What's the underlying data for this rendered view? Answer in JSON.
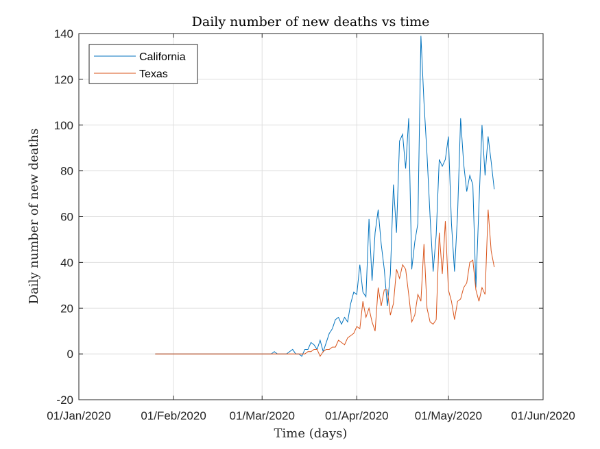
{
  "chart_data": {
    "type": "line",
    "title": "Daily number of new deaths vs time",
    "xlabel": "Time (days)",
    "ylabel": "Daily number of new deaths",
    "xlim": [
      "2020-01-01",
      "2020-06-01"
    ],
    "ylim": [
      -20,
      140
    ],
    "x_ticks": [
      "2020-01-01",
      "2020-02-01",
      "2020-03-01",
      "2020-04-01",
      "2020-05-01",
      "2020-06-01"
    ],
    "x_tick_labels": [
      "01/Jan/2020",
      "01/Feb/2020",
      "01/Mar/2020",
      "01/Apr/2020",
      "01/May/2020",
      "01/Jun/2020"
    ],
    "y_ticks": [
      -20,
      0,
      20,
      40,
      60,
      80,
      100,
      120,
      140
    ],
    "y_tick_labels": [
      "-20",
      "0",
      "20",
      "40",
      "60",
      "80",
      "100",
      "120",
      "140"
    ],
    "grid": true,
    "legend_position": "top-left",
    "series": [
      {
        "name": "California",
        "color": "#0072BD",
        "points": [
          [
            "2020-01-26",
            0
          ],
          [
            "2020-02-15",
            0
          ],
          [
            "2020-03-04",
            0
          ],
          [
            "2020-03-05",
            1
          ],
          [
            "2020-03-06",
            0
          ],
          [
            "2020-03-07",
            0
          ],
          [
            "2020-03-08",
            0
          ],
          [
            "2020-03-09",
            0
          ],
          [
            "2020-03-10",
            1
          ],
          [
            "2020-03-11",
            2
          ],
          [
            "2020-03-12",
            0
          ],
          [
            "2020-03-13",
            0
          ],
          [
            "2020-03-14",
            -1
          ],
          [
            "2020-03-15",
            2
          ],
          [
            "2020-03-16",
            2
          ],
          [
            "2020-03-17",
            5
          ],
          [
            "2020-03-18",
            4
          ],
          [
            "2020-03-19",
            2
          ],
          [
            "2020-03-20",
            6
          ],
          [
            "2020-03-21",
            1
          ],
          [
            "2020-03-22",
            5
          ],
          [
            "2020-03-23",
            9
          ],
          [
            "2020-03-24",
            11
          ],
          [
            "2020-03-25",
            15
          ],
          [
            "2020-03-26",
            16
          ],
          [
            "2020-03-27",
            13
          ],
          [
            "2020-03-28",
            16
          ],
          [
            "2020-03-29",
            14
          ],
          [
            "2020-03-30",
            22
          ],
          [
            "2020-03-31",
            27
          ],
          [
            "2020-04-01",
            26
          ],
          [
            "2020-04-02",
            39
          ],
          [
            "2020-04-03",
            27
          ],
          [
            "2020-04-04",
            25
          ],
          [
            "2020-04-05",
            59
          ],
          [
            "2020-04-06",
            32
          ],
          [
            "2020-04-07",
            53
          ],
          [
            "2020-04-08",
            63
          ],
          [
            "2020-04-09",
            48
          ],
          [
            "2020-04-10",
            37
          ],
          [
            "2020-04-11",
            21
          ],
          [
            "2020-04-12",
            35
          ],
          [
            "2020-04-13",
            74
          ],
          [
            "2020-04-14",
            53
          ],
          [
            "2020-04-15",
            93
          ],
          [
            "2020-04-16",
            96
          ],
          [
            "2020-04-17",
            81
          ],
          [
            "2020-04-18",
            103
          ],
          [
            "2020-04-19",
            37
          ],
          [
            "2020-04-20",
            49
          ],
          [
            "2020-04-21",
            57
          ],
          [
            "2020-04-22",
            139
          ],
          [
            "2020-04-23",
            110
          ],
          [
            "2020-04-24",
            87
          ],
          [
            "2020-04-25",
            60
          ],
          [
            "2020-04-26",
            36
          ],
          [
            "2020-04-27",
            52
          ],
          [
            "2020-04-28",
            85
          ],
          [
            "2020-04-29",
            82
          ],
          [
            "2020-04-30",
            85
          ],
          [
            "2020-05-01",
            95
          ],
          [
            "2020-05-02",
            57
          ],
          [
            "2020-05-03",
            36
          ],
          [
            "2020-05-04",
            61
          ],
          [
            "2020-05-05",
            103
          ],
          [
            "2020-05-06",
            83
          ],
          [
            "2020-05-07",
            71
          ],
          [
            "2020-05-08",
            78
          ],
          [
            "2020-05-09",
            74
          ],
          [
            "2020-05-10",
            29
          ],
          [
            "2020-05-11",
            65
          ],
          [
            "2020-05-12",
            100
          ],
          [
            "2020-05-13",
            78
          ],
          [
            "2020-05-14",
            95
          ],
          [
            "2020-05-15",
            84
          ],
          [
            "2020-05-16",
            72
          ]
        ]
      },
      {
        "name": "Texas",
        "color": "#D95319",
        "points": [
          [
            "2020-01-26",
            0
          ],
          [
            "2020-02-15",
            0
          ],
          [
            "2020-03-10",
            0
          ],
          [
            "2020-03-15",
            0
          ],
          [
            "2020-03-16",
            1
          ],
          [
            "2020-03-17",
            1
          ],
          [
            "2020-03-18",
            2
          ],
          [
            "2020-03-19",
            2
          ],
          [
            "2020-03-20",
            -1
          ],
          [
            "2020-03-21",
            1
          ],
          [
            "2020-03-22",
            2
          ],
          [
            "2020-03-23",
            2
          ],
          [
            "2020-03-24",
            3
          ],
          [
            "2020-03-25",
            3
          ],
          [
            "2020-03-26",
            6
          ],
          [
            "2020-03-27",
            5
          ],
          [
            "2020-03-28",
            4
          ],
          [
            "2020-03-29",
            7
          ],
          [
            "2020-03-30",
            8
          ],
          [
            "2020-03-31",
            9
          ],
          [
            "2020-04-01",
            12
          ],
          [
            "2020-04-02",
            11
          ],
          [
            "2020-04-03",
            23
          ],
          [
            "2020-04-04",
            16
          ],
          [
            "2020-04-05",
            20
          ],
          [
            "2020-04-06",
            14
          ],
          [
            "2020-04-07",
            10
          ],
          [
            "2020-04-08",
            29
          ],
          [
            "2020-04-09",
            21
          ],
          [
            "2020-04-10",
            28
          ],
          [
            "2020-04-11",
            28
          ],
          [
            "2020-04-12",
            17
          ],
          [
            "2020-04-13",
            22
          ],
          [
            "2020-04-14",
            37
          ],
          [
            "2020-04-15",
            33
          ],
          [
            "2020-04-16",
            39
          ],
          [
            "2020-04-17",
            37
          ],
          [
            "2020-04-18",
            26
          ],
          [
            "2020-04-19",
            14
          ],
          [
            "2020-04-20",
            17
          ],
          [
            "2020-04-21",
            26
          ],
          [
            "2020-04-22",
            23
          ],
          [
            "2020-04-23",
            48
          ],
          [
            "2020-04-24",
            20
          ],
          [
            "2020-04-25",
            14
          ],
          [
            "2020-04-26",
            13
          ],
          [
            "2020-04-27",
            15
          ],
          [
            "2020-04-28",
            53
          ],
          [
            "2020-04-29",
            35
          ],
          [
            "2020-04-30",
            58
          ],
          [
            "2020-05-01",
            28
          ],
          [
            "2020-05-02",
            23
          ],
          [
            "2020-05-03",
            15
          ],
          [
            "2020-05-04",
            23
          ],
          [
            "2020-05-05",
            24
          ],
          [
            "2020-05-06",
            29
          ],
          [
            "2020-05-07",
            31
          ],
          [
            "2020-05-08",
            40
          ],
          [
            "2020-05-09",
            41
          ],
          [
            "2020-05-10",
            28
          ],
          [
            "2020-05-11",
            23
          ],
          [
            "2020-05-12",
            29
          ],
          [
            "2020-05-13",
            26
          ],
          [
            "2020-05-14",
            63
          ],
          [
            "2020-05-15",
            45
          ],
          [
            "2020-05-16",
            38
          ]
        ]
      }
    ]
  }
}
